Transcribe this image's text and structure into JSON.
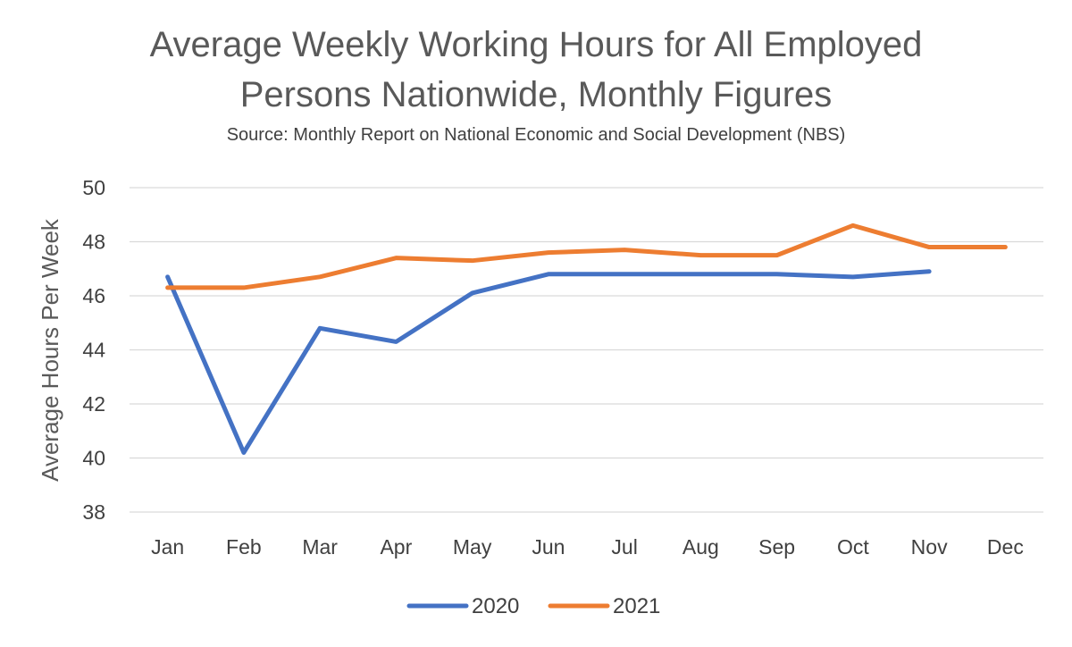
{
  "chart_data": {
    "type": "line",
    "title_lines": [
      "Average Weekly Working Hours for All Employed",
      "Persons Nationwide, Monthly Figures"
    ],
    "subtitle": "Source: Monthly Report on National Economic and Social Development (NBS)",
    "xlabel": "",
    "ylabel": "Average Hours Per Week",
    "categories": [
      "Jan",
      "Feb",
      "Mar",
      "Apr",
      "May",
      "Jun",
      "Jul",
      "Aug",
      "Sep",
      "Oct",
      "Nov",
      "Dec"
    ],
    "ylim": [
      38,
      50
    ],
    "yticks": [
      38,
      40,
      42,
      44,
      46,
      48,
      50
    ],
    "grid": true,
    "legend_position": "bottom",
    "series": [
      {
        "name": "2020",
        "color": "#4472C4",
        "values": [
          46.7,
          40.2,
          44.8,
          44.3,
          46.1,
          46.8,
          46.8,
          46.8,
          46.8,
          46.7,
          46.9,
          null
        ]
      },
      {
        "name": "2021",
        "color": "#ED7D31",
        "values": [
          46.3,
          46.3,
          46.7,
          47.4,
          47.3,
          47.6,
          47.7,
          47.5,
          47.5,
          48.6,
          47.8,
          47.8
        ]
      }
    ]
  }
}
